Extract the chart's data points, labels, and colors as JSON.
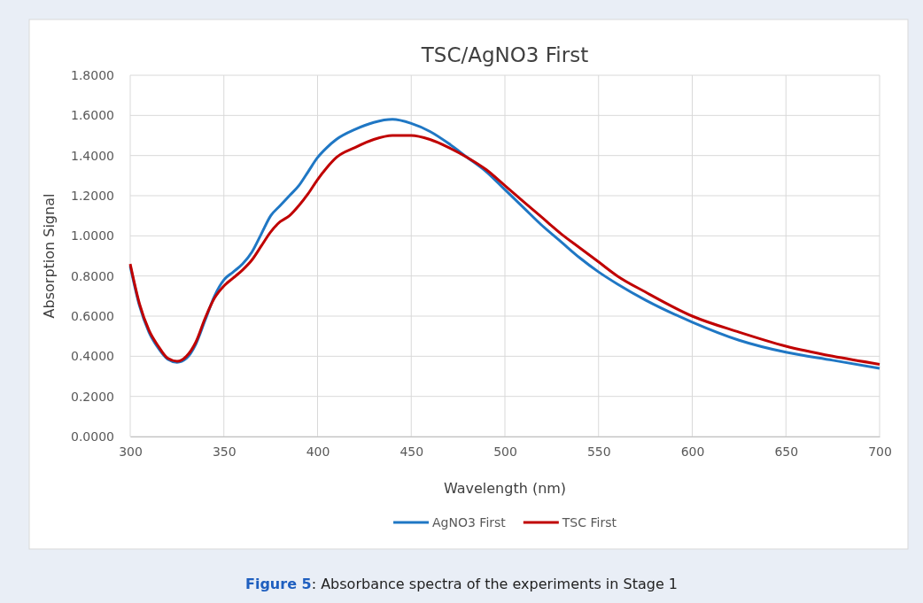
{
  "chart_data": {
    "type": "line",
    "title": "TSC/AgNO3 First",
    "xlabel": "Wavelength (nm)",
    "ylabel": "Absorption Signal",
    "annotations": [
      "Figure 5: Absorbance spectra of the experiments in Stage 1"
    ],
    "x": [
      300,
      305,
      310,
      315,
      320,
      325,
      330,
      335,
      340,
      345,
      350,
      355,
      360,
      365,
      370,
      375,
      380,
      385,
      390,
      395,
      400,
      405,
      410,
      420,
      430,
      440,
      450,
      460,
      470,
      480,
      490,
      500,
      510,
      520,
      530,
      540,
      550,
      560,
      575,
      600,
      625,
      650,
      675,
      700
    ],
    "series": [
      {
        "name": "AgNO3 First",
        "color": "#1f77c4",
        "values": [
          0.85,
          0.65,
          0.52,
          0.44,
          0.385,
          0.37,
          0.39,
          0.46,
          0.58,
          0.7,
          0.78,
          0.82,
          0.86,
          0.92,
          1.01,
          1.1,
          1.15,
          1.2,
          1.25,
          1.32,
          1.39,
          1.44,
          1.48,
          1.53,
          1.565,
          1.58,
          1.56,
          1.52,
          1.46,
          1.39,
          1.32,
          1.23,
          1.14,
          1.05,
          0.97,
          0.89,
          0.82,
          0.76,
          0.68,
          0.57,
          0.48,
          0.42,
          0.38,
          0.34
        ]
      },
      {
        "name": "TSC First",
        "color": "#c00000",
        "values": [
          0.86,
          0.66,
          0.53,
          0.45,
          0.39,
          0.375,
          0.4,
          0.47,
          0.59,
          0.69,
          0.75,
          0.79,
          0.83,
          0.88,
          0.95,
          1.02,
          1.07,
          1.1,
          1.15,
          1.21,
          1.28,
          1.34,
          1.39,
          1.44,
          1.48,
          1.5,
          1.5,
          1.48,
          1.44,
          1.39,
          1.33,
          1.25,
          1.17,
          1.09,
          1.01,
          0.94,
          0.87,
          0.8,
          0.72,
          0.6,
          0.52,
          0.45,
          0.4,
          0.36
        ]
      }
    ],
    "xlim": [
      300,
      700
    ],
    "xticks": [
      300,
      350,
      400,
      450,
      500,
      550,
      600,
      650,
      700
    ],
    "ylim": [
      0,
      1.8
    ],
    "yticks": [
      {
        "value": 0,
        "label": "0.0000"
      },
      {
        "value": 0.2,
        "label": "0.2000"
      },
      {
        "value": 0.4,
        "label": "0.4000"
      },
      {
        "value": 0.6,
        "label": "0.6000"
      },
      {
        "value": 0.8,
        "label": "0.8000"
      },
      {
        "value": 1,
        "label": "1.0000"
      },
      {
        "value": 1.2,
        "label": "1.2000"
      },
      {
        "value": 1.4,
        "label": "1.4000"
      },
      {
        "value": 1.6,
        "label": "1.6000"
      },
      {
        "value": 1.8,
        "label": "1.8000"
      }
    ],
    "grid": true,
    "legend": "bottom",
    "marker": "none",
    "line_style": "solid"
  }
}
